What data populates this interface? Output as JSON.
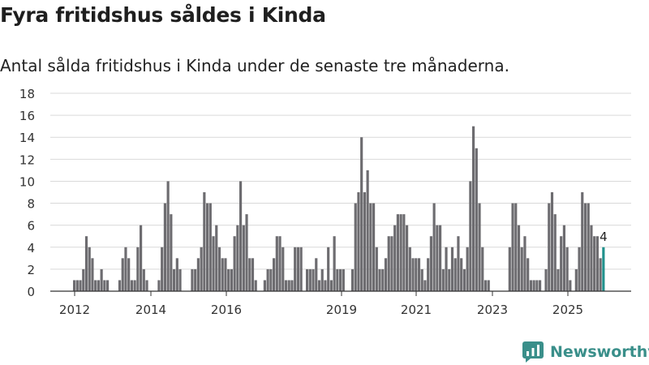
{
  "title": "Fyra fritidshus såldes i Kinda",
  "subtitle": "Antal sålda fritidshus i Kinda under de senaste tre månaderna.",
  "brand": "Newsworthy",
  "colors": {
    "bar": "#6d6c70",
    "highlight": "#21918c",
    "grid": "#d9d9d9",
    "brand": "#3a8f8a"
  },
  "chart_data": {
    "type": "bar",
    "title": "Fyra fritidshus såldes i Kinda",
    "subtitle": "Antal sålda fritidshus i Kinda under de senaste tre månaderna.",
    "xlabel": "",
    "ylabel": "",
    "ylim": [
      0,
      18
    ],
    "yticks": [
      0,
      2,
      4,
      6,
      8,
      10,
      12,
      14,
      16,
      18
    ],
    "xtick_labels": [
      "2012",
      "2014",
      "2016",
      "2019",
      "2021",
      "2023",
      "2025"
    ],
    "start": "2011-10",
    "frequency": "monthly (rolling three-month total)",
    "highlight_label": "4",
    "values": [
      1,
      1,
      1,
      2,
      5,
      4,
      3,
      1,
      1,
      2,
      1,
      1,
      0,
      0,
      0,
      1,
      3,
      4,
      3,
      1,
      1,
      4,
      6,
      2,
      1,
      0,
      0,
      0,
      1,
      4,
      8,
      10,
      7,
      2,
      3,
      2,
      0,
      0,
      0,
      2,
      2,
      3,
      4,
      9,
      8,
      8,
      5,
      6,
      4,
      3,
      3,
      2,
      2,
      5,
      6,
      10,
      6,
      7,
      3,
      3,
      1,
      0,
      0,
      1,
      2,
      2,
      3,
      5,
      5,
      4,
      1,
      1,
      1,
      4,
      4,
      4,
      0,
      2,
      2,
      2,
      3,
      1,
      2,
      1,
      4,
      1,
      5,
      2,
      2,
      2,
      0,
      0,
      2,
      8,
      9,
      14,
      9,
      11,
      8,
      8,
      4,
      2,
      2,
      3,
      5,
      5,
      6,
      7,
      7,
      7,
      6,
      4,
      3,
      3,
      3,
      2,
      1,
      3,
      5,
      8,
      6,
      6,
      2,
      4,
      2,
      4,
      3,
      5,
      3,
      2,
      4,
      10,
      15,
      13,
      8,
      4,
      1,
      1,
      0,
      0,
      0,
      0,
      0,
      0,
      4,
      8,
      8,
      6,
      4,
      5,
      3,
      1,
      1,
      1,
      1,
      0,
      2,
      8,
      9,
      7,
      2,
      5,
      6,
      4,
      1,
      0,
      2,
      4,
      9,
      8,
      8,
      6,
      5,
      5,
      3,
      4
    ]
  }
}
